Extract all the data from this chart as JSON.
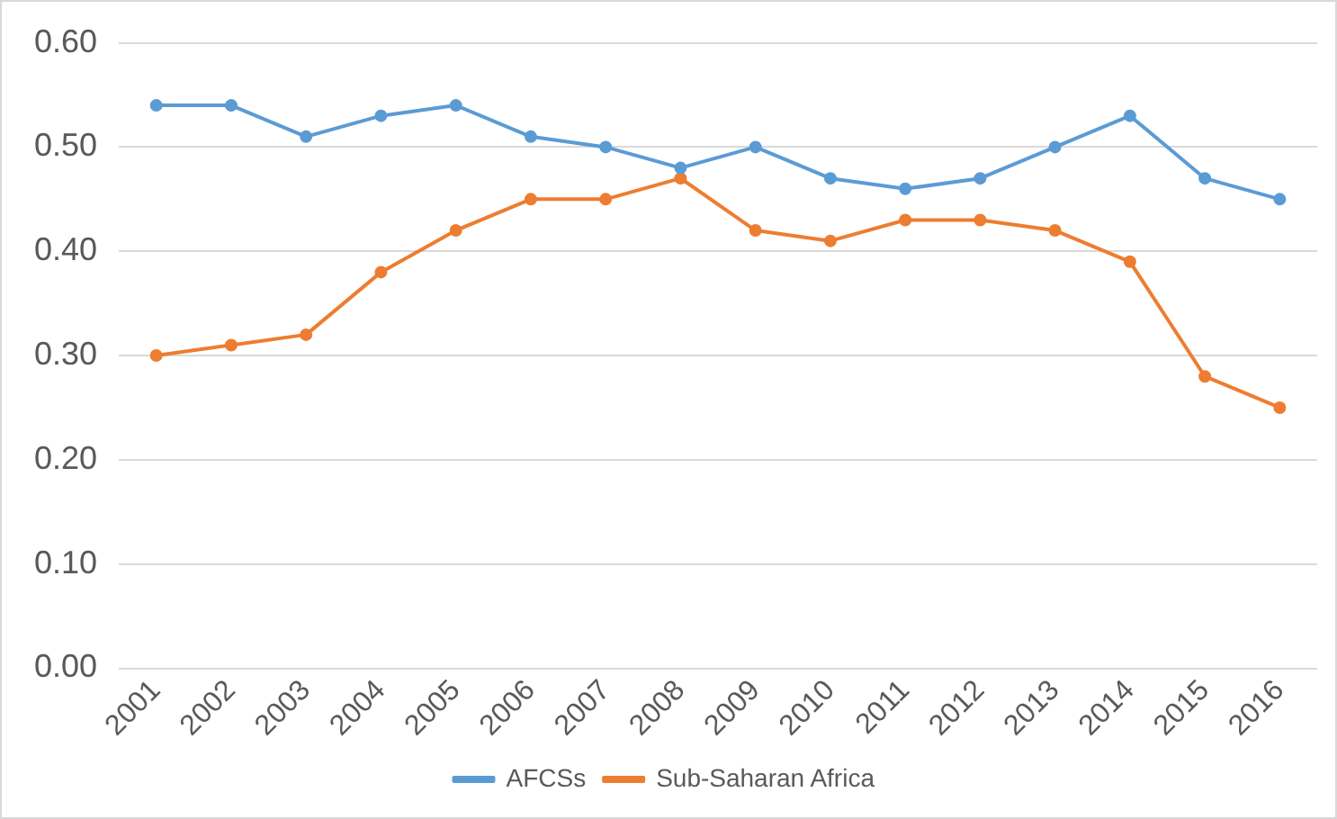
{
  "chart_data": {
    "type": "line",
    "categories": [
      "2001",
      "2002",
      "2003",
      "2004",
      "2005",
      "2006",
      "2007",
      "2008",
      "2009",
      "2010",
      "2011",
      "2012",
      "2013",
      "2014",
      "2015",
      "2016"
    ],
    "series": [
      {
        "name": "AFCSs",
        "color": "#5b9bd5",
        "values": [
          0.54,
          0.54,
          0.51,
          0.53,
          0.54,
          0.51,
          0.5,
          0.48,
          0.5,
          0.47,
          0.46,
          0.47,
          0.5,
          0.53,
          0.47,
          0.45
        ]
      },
      {
        "name": "Sub-Saharan Africa",
        "color": "#ed7d31",
        "values": [
          0.3,
          0.31,
          0.32,
          0.38,
          0.42,
          0.45,
          0.45,
          0.47,
          0.42,
          0.41,
          0.43,
          0.43,
          0.42,
          0.39,
          0.28,
          0.25
        ]
      }
    ],
    "ylim": [
      0,
      0.6
    ],
    "yticks": [
      {
        "value": 0,
        "label": "0.00"
      },
      {
        "value": 0.1,
        "label": "0.10"
      },
      {
        "value": 0.2,
        "label": "0.20"
      },
      {
        "value": 0.3,
        "label": "0.30"
      },
      {
        "value": 0.4,
        "label": "0.40"
      },
      {
        "value": 0.5,
        "label": "0.50"
      },
      {
        "value": 0.6,
        "label": "0.60"
      }
    ],
    "grid": "y",
    "legend": "bottom",
    "marker": "circle",
    "line_style": "solid"
  }
}
